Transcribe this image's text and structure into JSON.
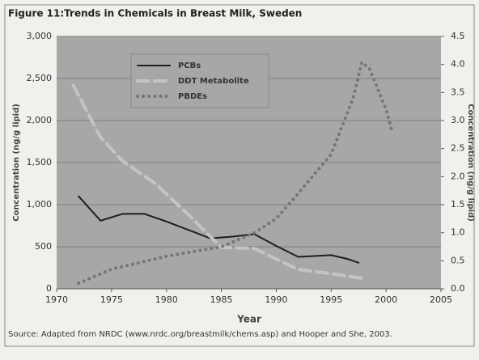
{
  "chart_data": {
    "type": "line",
    "title": "Figure 11:Trends in Chemicals in Breast Milk, Sweden",
    "xlabel": "Year",
    "ylabel": "Concentration (ng/g lipid)",
    "y2label": "Concentration (ng/g lipid)",
    "source": "Source: Adapted from NRDC (www.nrdc.org/breastmilk/chems.asp) and Hooper and She, 2003.",
    "xlim": [
      1970,
      2005
    ],
    "xticks": [
      1970,
      1975,
      1980,
      1985,
      1990,
      1995,
      2000,
      2005
    ],
    "ylim": [
      0,
      3000
    ],
    "yticks": [
      0,
      500,
      {
        "value": 1000,
        "label": "1,000"
      },
      {
        "value": 1500,
        "label": "1,500"
      },
      {
        "value": 2000,
        "label": "2,000"
      },
      {
        "value": 2500,
        "label": "2,500"
      },
      {
        "value": 3000,
        "label": "3,000"
      }
    ],
    "y2lim": [
      0,
      4.5
    ],
    "y2ticks": [
      {
        "value": 0,
        "label": "0.0"
      },
      0.5,
      {
        "value": 1,
        "label": "1.0"
      },
      1.5,
      {
        "value": 2,
        "label": "2.0"
      },
      2.5,
      {
        "value": 3,
        "label": "3.0"
      },
      3.5,
      {
        "value": 4,
        "label": "4.0"
      },
      4.5
    ],
    "grid": true,
    "legend": "upper left",
    "series": [
      {
        "name": "PCBs",
        "color": "#1e1e1e",
        "style": "solid",
        "x": [
          1972,
          1974,
          1976,
          1978,
          1980,
          1984,
          1986,
          1988,
          1990,
          1992,
          1995,
          1996.5,
          1997.5
        ],
        "values": [
          1100,
          810,
          890,
          890,
          800,
          600,
          620,
          650,
          510,
          380,
          400,
          355,
          310
        ]
      },
      {
        "name": "DDT Metabolite",
        "color": "#c4c4c4",
        "style": "dashed",
        "x": [
          1971.5,
          1974,
          1976,
          1979,
          1982,
          1985,
          1988,
          1992,
          1995,
          1998
        ],
        "values": [
          2420,
          1800,
          1520,
          1250,
          880,
          490,
          480,
          230,
          180,
          120
        ]
      },
      {
        "name": "PBDEs",
        "color": "#767676",
        "style": "dotted",
        "axis": "y2",
        "x": [
          1972,
          1975,
          1980,
          1985,
          1988,
          1990,
          1992,
          1995,
          1997,
          1997.8,
          1998.5,
          2000,
          2000.5
        ],
        "values": [
          0.1,
          0.35,
          0.58,
          0.75,
          1.0,
          1.25,
          1.7,
          2.4,
          3.4,
          4.04,
          3.92,
          3.2,
          2.84
        ]
      }
    ]
  }
}
